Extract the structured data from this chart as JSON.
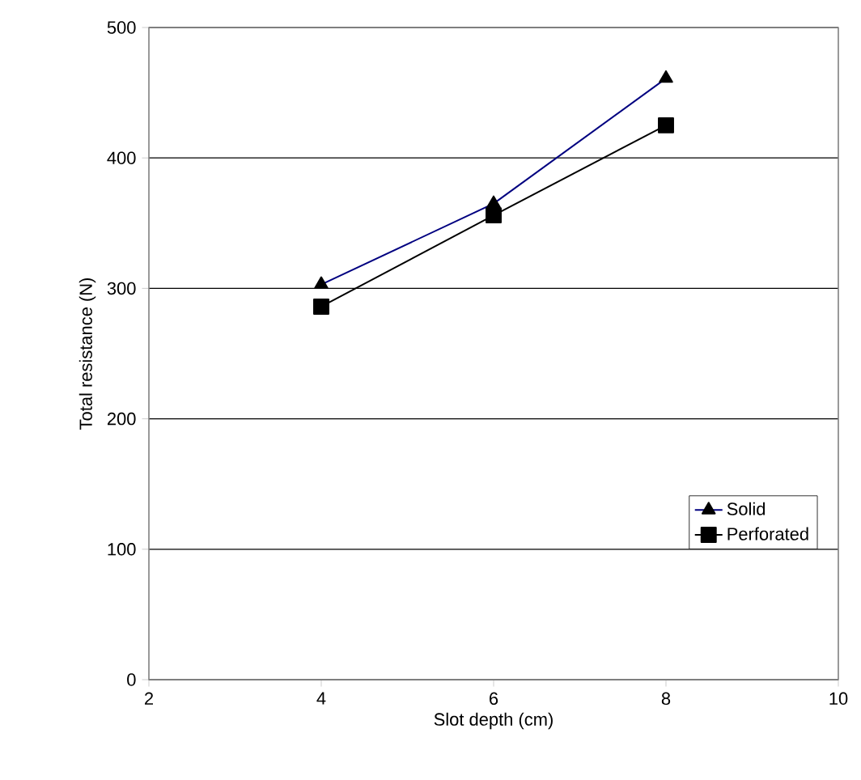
{
  "chart_data": {
    "type": "line",
    "xlabel": "Slot depth (cm)",
    "ylabel": "Total resistance (N)",
    "xlim": [
      2,
      10
    ],
    "xticks": [
      2,
      4,
      6,
      8,
      10
    ],
    "ylim": [
      0,
      500
    ],
    "yticks": [
      0,
      100,
      200,
      300,
      400,
      500
    ],
    "x": [
      4,
      6,
      8
    ],
    "series": [
      {
        "name": "Solid",
        "color": "#000080",
        "marker": "triangle",
        "values": [
          303,
          365,
          461
        ]
      },
      {
        "name": "Perforated",
        "color": "#000000",
        "marker": "square",
        "values": [
          286,
          356,
          425
        ]
      }
    ],
    "grid": "y",
    "legend": "right",
    "line_style": "solid"
  }
}
